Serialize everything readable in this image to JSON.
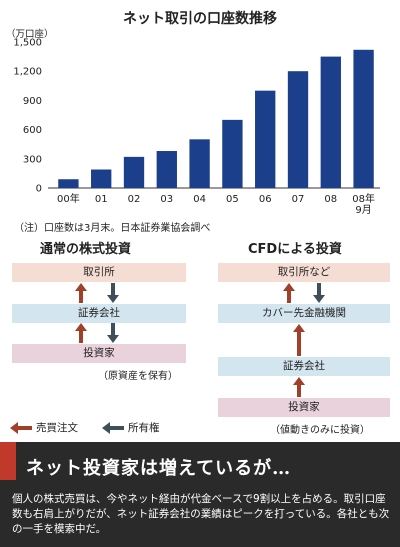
{
  "chart_data": {
    "type": "bar",
    "title": "ネット取引の口座数推移",
    "unit_label": "（万口座）",
    "categories": [
      "00年",
      "01",
      "02",
      "03",
      "04",
      "05",
      "06",
      "07",
      "08",
      "08年\n9月"
    ],
    "values": [
      90,
      190,
      320,
      380,
      500,
      700,
      1000,
      1200,
      1350,
      1420
    ],
    "ylim": [
      0,
      1500
    ],
    "yticks": [
      0,
      300,
      600,
      900,
      1200,
      1500
    ],
    "ytick_labels": [
      "0",
      "300",
      "600",
      "900",
      "1,200",
      "1,500"
    ],
    "grid": false,
    "bar_color": "#1b3f8b",
    "note": "（注）口座数は3月末。日本証券業協会調べ"
  },
  "diagrams": {
    "left": {
      "title": "通常の株式投資",
      "top": "取引所",
      "middle": "証券会社",
      "bottom": "投資家",
      "caption": "（原資産を保有）"
    },
    "right": {
      "title": "CFDによる投資",
      "top": "取引所など",
      "upper_middle": "カバー先金融機関",
      "lower_middle": "証券会社",
      "bottom": "投資家",
      "caption": "（値動きのみに投資）"
    }
  },
  "legend": {
    "order_label": "売買注文",
    "ownership_label": "所有権",
    "order_color": "#a0402a",
    "ownership_color": "#3f4f5a"
  },
  "banner": {
    "headline": "ネット投資家は増えているが…",
    "body": "個人の株式売買は、今やネット経由が代金ベースで9割以上を占める。取引口座数も右肩上がりだが、ネット証券会社の業績はピークを打っている。各社とも次の一手を模索中だ。",
    "background": "#2a2a2a",
    "accent": "#c0392b"
  }
}
